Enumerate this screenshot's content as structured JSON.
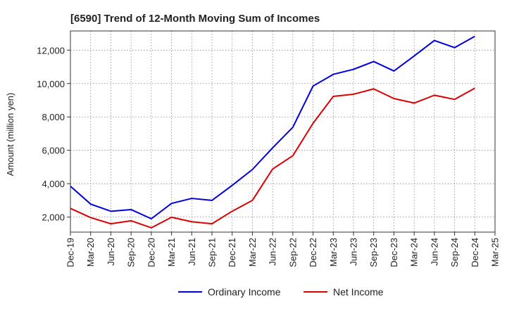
{
  "chart_data": {
    "type": "line",
    "title": "[6590]  Trend of 12-Month Moving Sum of Incomes",
    "xlabel": "",
    "ylabel": "Amount (million yen)",
    "categories": [
      "Dec-19",
      "Mar-20",
      "Jun-20",
      "Sep-20",
      "Dec-20",
      "Mar-21",
      "Jun-21",
      "Sep-21",
      "Dec-21",
      "Mar-22",
      "Jun-22",
      "Sep-22",
      "Dec-22",
      "Mar-23",
      "Jun-23",
      "Sep-23",
      "Dec-23",
      "Mar-24",
      "Jun-24",
      "Sep-24",
      "Dec-24",
      "Mar-25"
    ],
    "yticks": [
      2000,
      4000,
      6000,
      8000,
      10000,
      12000
    ],
    "ytick_labels": [
      "2,000",
      "4,000",
      "6,000",
      "8,000",
      "10,000",
      "12,000"
    ],
    "ylim": [
      1100,
      13150
    ],
    "grid": true,
    "legend_position": "bottom-center",
    "series": [
      {
        "name": "Ordinary Income",
        "color": "#0000dd",
        "values": [
          3850,
          2780,
          2350,
          2450,
          1900,
          2820,
          3120,
          3000,
          3900,
          4850,
          6150,
          7380,
          9850,
          10550,
          10850,
          11320,
          10750,
          11650,
          12580,
          12150,
          12830,
          null
        ]
      },
      {
        "name": "Net Income",
        "color": "#dd0000",
        "values": [
          2520,
          1970,
          1600,
          1780,
          1360,
          1990,
          1720,
          1600,
          2350,
          3000,
          4880,
          5680,
          7620,
          9230,
          9360,
          9680,
          9100,
          8830,
          9300,
          9050,
          9720,
          null
        ]
      }
    ]
  }
}
